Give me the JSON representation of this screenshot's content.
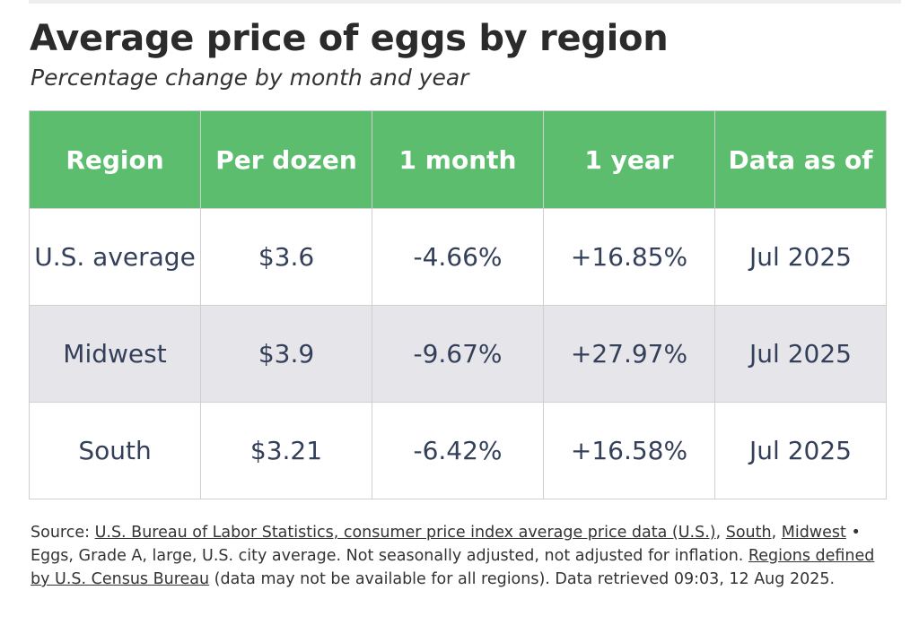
{
  "title": "Average price of eggs by region",
  "subtitle": "Percentage change by month and year",
  "chart_data": {
    "type": "table",
    "columns": [
      "Region",
      "Per dozen",
      "1 month",
      "1 year",
      "Data as of"
    ],
    "rows": [
      [
        "U.S. average",
        "$3.6",
        "-4.66%",
        "+16.85%",
        "Jul 2025"
      ],
      [
        "Midwest",
        "$3.9",
        "-9.67%",
        "+27.97%",
        "Jul 2025"
      ],
      [
        "South",
        "$3.21",
        "-6.42%",
        "+16.58%",
        "Jul 2025"
      ]
    ]
  },
  "source": {
    "prefix": "Source: ",
    "link_bls": "U.S. Bureau of Labor Statistics, consumer price index average price data (U.S.)",
    "sep1": ", ",
    "link_south": "South",
    "sep2": ", ",
    "link_midwest": "Midwest",
    "middle": " • Eggs, Grade A, large, U.S. city average. Not seasonally adjusted, not adjusted for inflation. ",
    "link_regions": "Regions defined by U.S. Census Bureau",
    "suffix": " (data may not be available for all regions). Data retrieved 09:03, 12 Aug 2025."
  },
  "colors": {
    "header_bg": "#5cbd6f",
    "alt_row_bg": "#e6e6ea",
    "cell_text": "#34405a"
  }
}
